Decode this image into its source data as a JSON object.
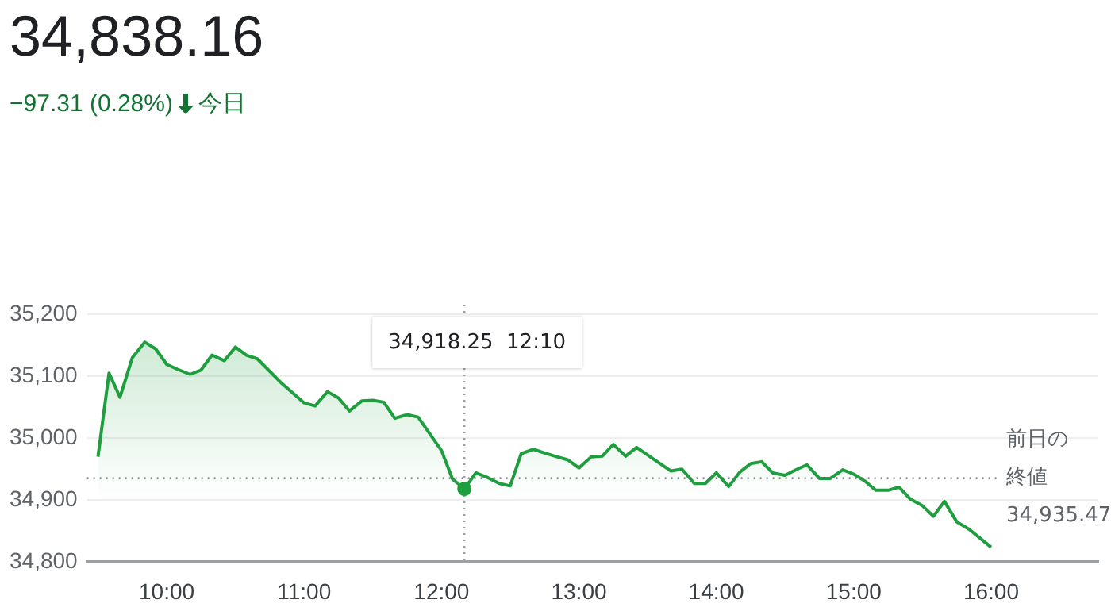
{
  "chart_data": {
    "type": "area",
    "title": "34,838.16",
    "subtitle": "−97.31 (0.28%) 今日",
    "x": [
      9.5,
      9.58,
      9.66,
      9.75,
      9.84,
      9.92,
      10.0,
      10.08,
      10.17,
      10.25,
      10.33,
      10.42,
      10.5,
      10.58,
      10.66,
      10.83,
      11.0,
      11.08,
      11.17,
      11.25,
      11.33,
      11.42,
      11.5,
      11.58,
      11.66,
      11.75,
      11.83,
      12.0,
      12.08,
      12.1667,
      12.25,
      12.34,
      12.42,
      12.5,
      12.58,
      12.67,
      12.75,
      12.84,
      12.92,
      13.0,
      13.09,
      13.17,
      13.25,
      13.34,
      13.42,
      13.59,
      13.67,
      13.75,
      13.84,
      13.92,
      14.0,
      14.09,
      14.17,
      14.25,
      14.33,
      14.41,
      14.5,
      14.58,
      14.66,
      14.75,
      14.83,
      14.92,
      15.0,
      15.08,
      15.16,
      15.25,
      15.33,
      15.41,
      15.5,
      15.58,
      15.66,
      15.75,
      15.84,
      16.0
    ],
    "series": [
      {
        "color": "#1e9e3e",
        "values": [
          34970,
          35105,
          35066,
          35130,
          35155,
          35144,
          35119,
          35111,
          35103,
          35110,
          35134,
          35125,
          35147,
          35134,
          35128,
          35090,
          35057,
          35052,
          35075,
          35065,
          35044,
          35060,
          35061,
          35058,
          35032,
          35038,
          35034,
          34980,
          34934,
          34918.25,
          34944,
          34936,
          34927,
          34923,
          34975,
          34982,
          34976,
          34970,
          34965,
          34952,
          34970,
          34971,
          34990,
          34971,
          34985,
          34959,
          34947,
          34950,
          34927,
          34927,
          34944,
          34922,
          34945,
          34959,
          34962,
          34944,
          34940,
          34949,
          34957,
          34935,
          34935,
          34949,
          34942,
          34931,
          34916,
          34916,
          34921,
          34902,
          34891,
          34874,
          34898,
          34865,
          34853,
          34824
        ]
      }
    ],
    "xlim": [
      9.42,
      16.78
    ],
    "ylim": [
      34800,
      35200
    ],
    "xticks": [
      {
        "value": 10,
        "label": "10:00"
      },
      {
        "value": 11,
        "label": "11:00"
      },
      {
        "value": 12,
        "label": "12:00"
      },
      {
        "value": 13,
        "label": "13:00"
      },
      {
        "value": 14,
        "label": "14:00"
      },
      {
        "value": 15,
        "label": "15:00"
      },
      {
        "value": 16,
        "label": "16:00"
      }
    ],
    "yticks": [
      {
        "value": 34800,
        "label": "34,800"
      },
      {
        "value": 34900,
        "label": "34,900"
      },
      {
        "value": 35000,
        "label": "35,000"
      },
      {
        "value": 35100,
        "label": "35,100"
      },
      {
        "value": 35200,
        "label": "35,200"
      }
    ],
    "grid": "y",
    "legend": false,
    "marker": "none",
    "line_style": "solid",
    "ref_lines": [
      {
        "axis": "y",
        "value": 34935.47,
        "label": "前日の終値",
        "color": "#5f6368",
        "line_style": "dotted"
      },
      {
        "axis": "x",
        "value": 12.1667,
        "color": "#9aa0a6",
        "line_style": "dotted"
      }
    ],
    "annotations": [
      "34,918.25  12:10",
      "34,935.47"
    ]
  }
}
